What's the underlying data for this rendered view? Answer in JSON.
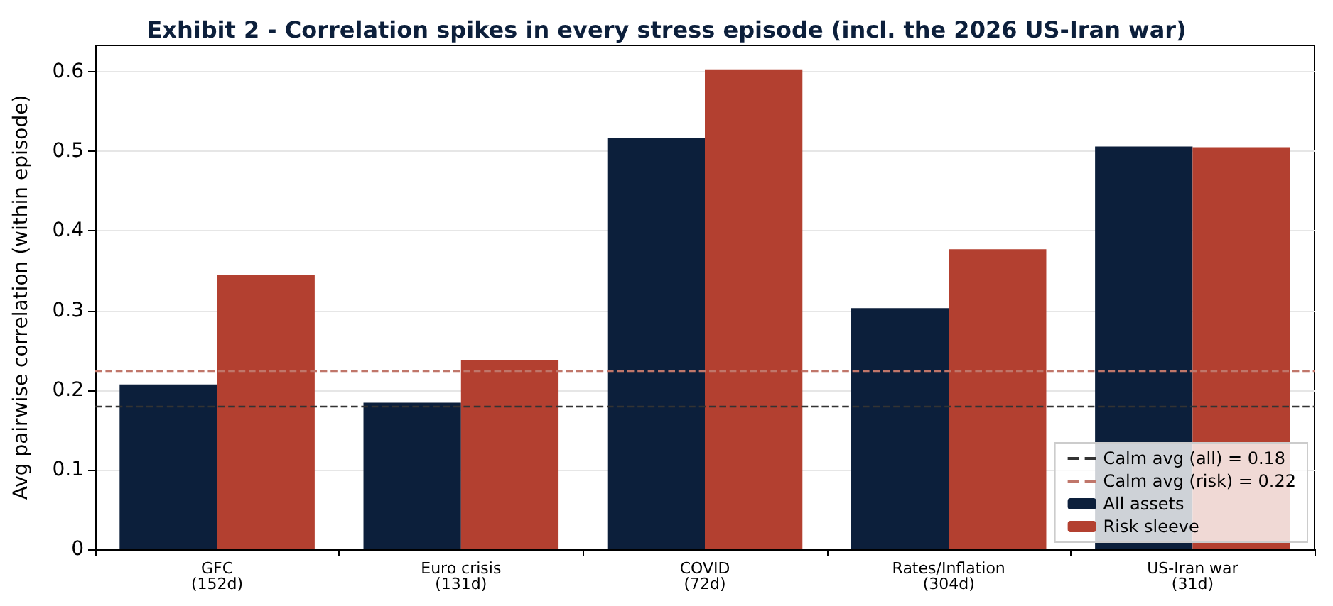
{
  "chart_data": {
    "type": "bar",
    "title": "Exhibit 2 - Correlation spikes in every stress episode (incl. the 2026 US-Iran war)",
    "ylabel": "Avg pairwise correlation (within episode)",
    "categories": [
      "GFC\n(152d)",
      "Euro crisis\n(131d)",
      "COVID\n(72d)",
      "Rates/Inflation\n(304d)",
      "US-Iran war\n(31d)"
    ],
    "series": [
      {
        "name": "All assets",
        "color": "#0c1f3b",
        "values": [
          0.207,
          0.184,
          0.517,
          0.303,
          0.506
        ]
      },
      {
        "name": "Risk sleeve",
        "color": "#b34030",
        "values": [
          0.345,
          0.238,
          0.603,
          0.377,
          0.505
        ]
      }
    ],
    "ref_lines": [
      {
        "axis": "y",
        "value": 0.179,
        "label": "Calm avg (all) = 0.18",
        "color": "#333333",
        "line_style": "dashed"
      },
      {
        "axis": "y",
        "value": 0.224,
        "label": "Calm avg (risk) = 0.22",
        "color": "#c0766a",
        "line_style": "dashed"
      }
    ],
    "ylim": [
      0,
      0.633
    ],
    "yticks": [
      0,
      0.1,
      0.2,
      0.3,
      0.4,
      0.5,
      0.6
    ],
    "grid": "y",
    "legend": "bottom right"
  }
}
